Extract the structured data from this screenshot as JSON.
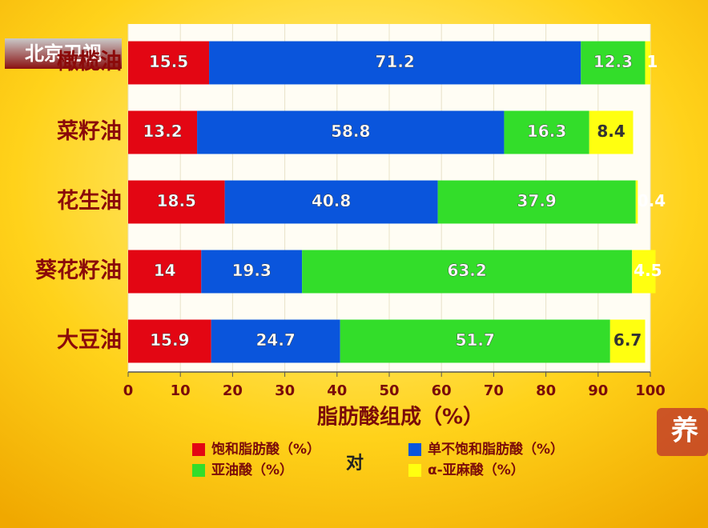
{
  "chart_data": {
    "type": "stacked-barh",
    "xlabel": "脂肪酸组成（%）",
    "categories": [
      "橄榄油",
      "菜籽油",
      "花生油",
      "葵花籽油",
      "大豆油"
    ],
    "series": [
      {
        "name": "饱和脂肪酸（%）",
        "color": "#e30613",
        "values": [
          15.5,
          13.2,
          18.5,
          14,
          15.9
        ]
      },
      {
        "name": "单不饱和脂肪酸（%）",
        "color": "#0a55dc",
        "values": [
          71.2,
          58.8,
          40.8,
          19.3,
          24.7
        ]
      },
      {
        "name": "亚油酸（%）",
        "color": "#33dd2a",
        "values": [
          12.3,
          16.3,
          37.9,
          63.2,
          51.7
        ]
      },
      {
        "name": "α-亚麻酸（%）",
        "color": "#ffff10",
        "values": [
          1,
          8.4,
          0.4,
          4.5,
          6.7
        ]
      }
    ],
    "xlim": [
      0,
      100
    ],
    "xticks": [
      0,
      10,
      20,
      30,
      40,
      50,
      60,
      70,
      80,
      90,
      100
    ],
    "grid": true
  },
  "overlay": {
    "channel_logo": "北京卫视",
    "caption": "对",
    "corner_logo": "养"
  }
}
